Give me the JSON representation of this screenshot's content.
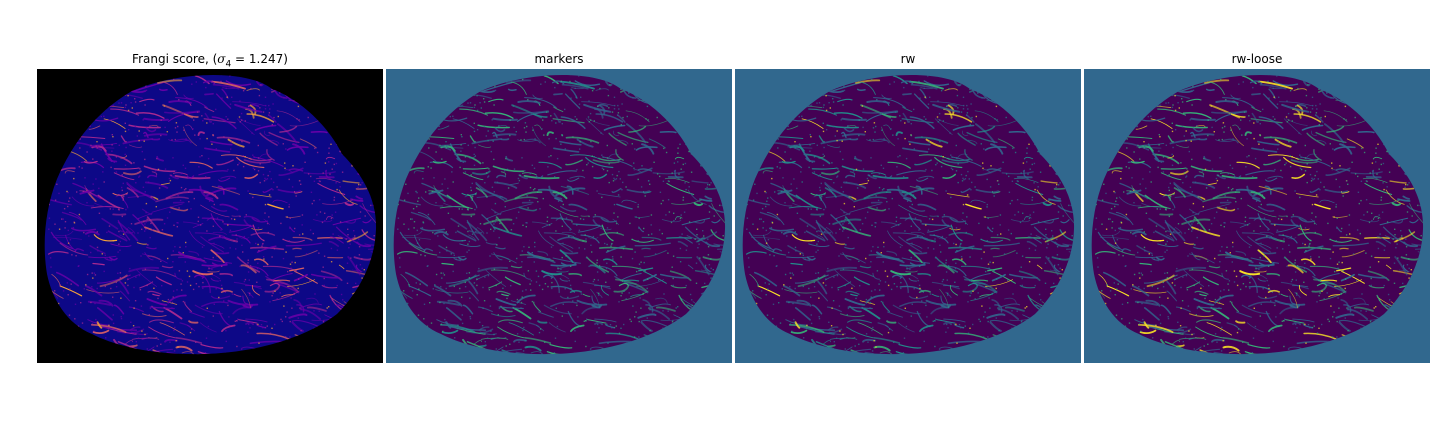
{
  "panels": [
    {
      "id": "frangi",
      "title_prefix": "Frangi score, (",
      "title_symbol": "σ",
      "title_sub": "4",
      "title_suffix": " = 1.247)",
      "background": "#000000",
      "blob_fill": "#0d0887",
      "ridge_colors": [
        "#6a00a8",
        "#b12a90",
        "#e16462",
        "#fca636"
      ]
    },
    {
      "id": "markers",
      "title": "markers",
      "background": "#31688e",
      "blob_fill": "#440154",
      "ridge_colors": [
        "#31688e",
        "#35b779",
        "#21918c"
      ]
    },
    {
      "id": "rw",
      "title": "rw",
      "background": "#31688e",
      "blob_fill": "#440154",
      "ridge_colors": [
        "#31688e",
        "#21918c",
        "#35b779",
        "#fde725"
      ]
    },
    {
      "id": "rw-loose",
      "title": "rw-loose",
      "background": "#31688e",
      "blob_fill": "#440154",
      "ridge_colors": [
        "#31688e",
        "#35b779",
        "#fde725",
        "#fde725"
      ]
    }
  ]
}
